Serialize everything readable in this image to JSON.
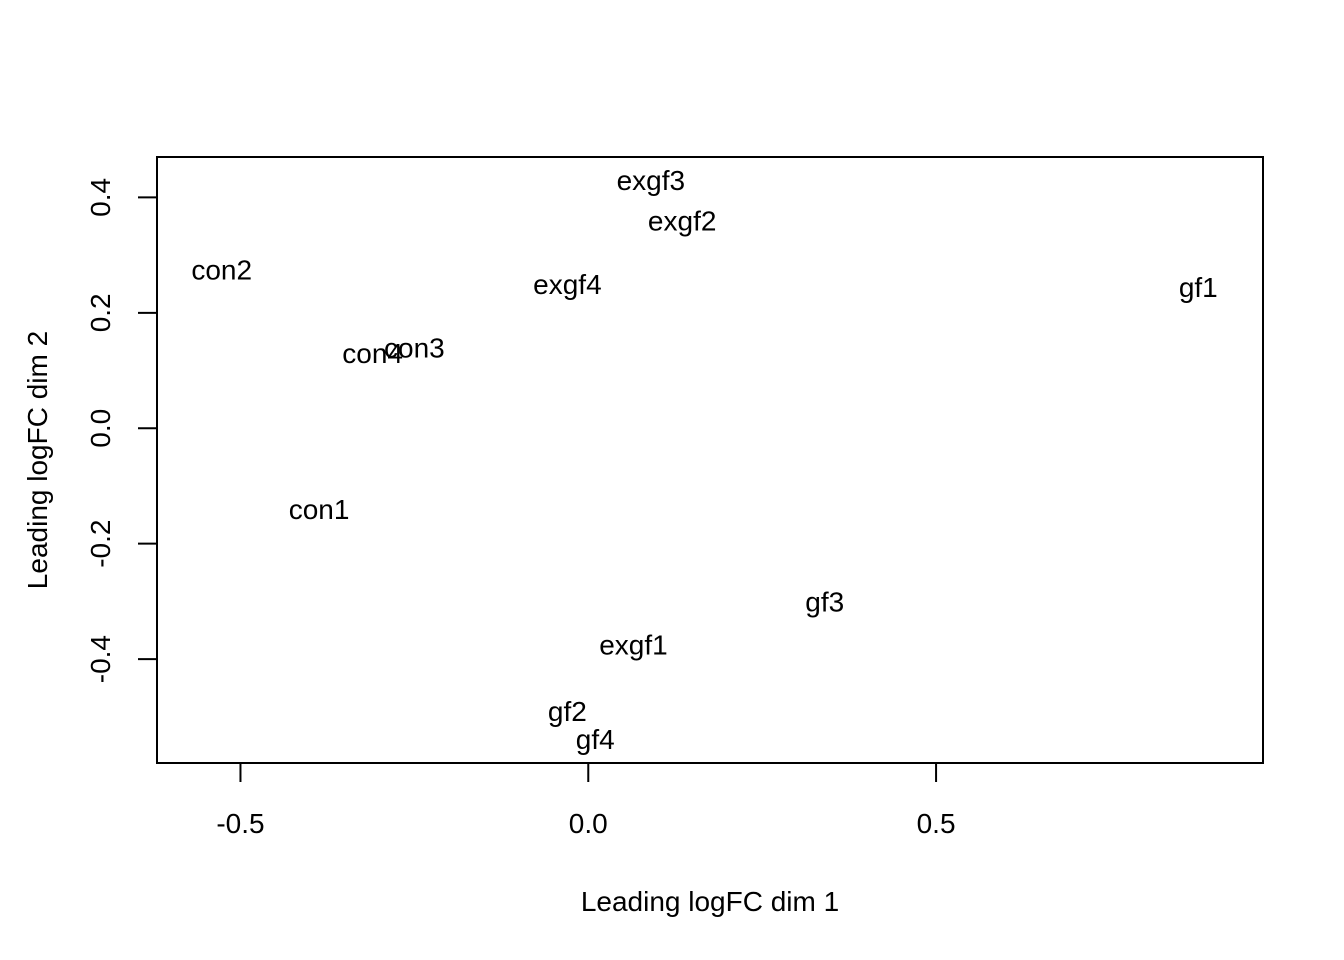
{
  "chart_data": {
    "type": "scatter",
    "title": "",
    "xlabel": "Leading logFC dim 1",
    "ylabel": "Leading logFC dim 2",
    "xlim": [
      -0.62,
      0.97
    ],
    "ylim": [
      -0.58,
      0.47
    ],
    "xticks": [
      "-0.5",
      "0.0",
      "0.5"
    ],
    "yticks": [
      "-0.4",
      "-0.2",
      "0.0",
      "0.2",
      "0.4"
    ],
    "grid": false,
    "points": [
      {
        "label": "exgf3",
        "x": 0.09,
        "y": 0.43
      },
      {
        "label": "exgf2",
        "x": 0.135,
        "y": 0.36
      },
      {
        "label": "con2",
        "x": -0.527,
        "y": 0.275
      },
      {
        "label": "exgf4",
        "x": -0.03,
        "y": 0.25
      },
      {
        "label": "gf1",
        "x": 0.877,
        "y": 0.245
      },
      {
        "label": "con3",
        "x": -0.25,
        "y": 0.14
      },
      {
        "label": "con4",
        "x": -0.31,
        "y": 0.13
      },
      {
        "label": "con1",
        "x": -0.387,
        "y": -0.14
      },
      {
        "label": "gf3",
        "x": 0.34,
        "y": -0.3
      },
      {
        "label": "exgf1",
        "x": 0.065,
        "y": -0.375
      },
      {
        "label": "gf2",
        "x": -0.03,
        "y": -0.49
      },
      {
        "label": "gf4",
        "x": 0.01,
        "y": -0.538
      }
    ]
  }
}
